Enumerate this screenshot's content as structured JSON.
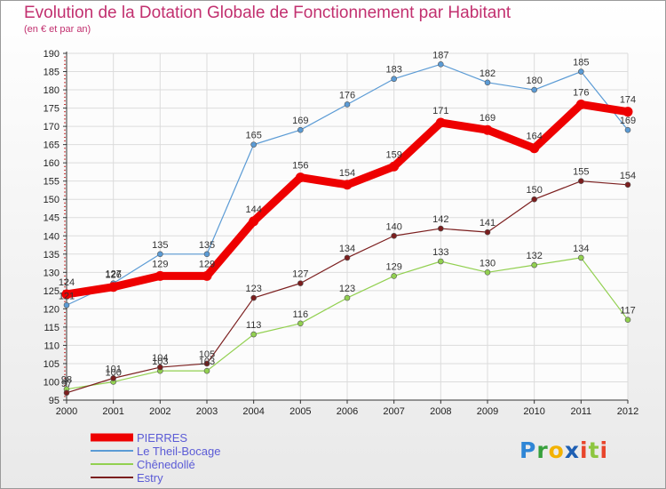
{
  "title": "Evolution de la Dotation Globale de Fonctionnement par Habitant",
  "subtitle": "(en € et par an)",
  "logo": {
    "text": "Proxiti",
    "chars": [
      "P",
      "r",
      "o",
      "x",
      "i",
      "t",
      "i"
    ]
  },
  "chart_data": {
    "type": "line",
    "title": "Evolution de la Dotation Globale de Fonctionnement par Habitant",
    "subtitle": "(en € et par an)",
    "xlabel": "",
    "ylabel": "",
    "x": [
      2000,
      2001,
      2002,
      2003,
      2004,
      2005,
      2006,
      2007,
      2008,
      2009,
      2010,
      2011,
      2012
    ],
    "ylim": [
      95,
      190
    ],
    "yticks": [
      95,
      100,
      105,
      110,
      115,
      120,
      125,
      130,
      135,
      140,
      145,
      150,
      155,
      160,
      165,
      170,
      175,
      180,
      185,
      190
    ],
    "grid": true,
    "legend_position": "bottom-left",
    "series": [
      {
        "name": "PIERRES",
        "color": "#ee0000",
        "values": [
          124,
          126,
          129,
          129,
          144,
          156,
          154,
          159,
          171,
          169,
          164,
          176,
          174
        ]
      },
      {
        "name": "Le Theil-Bocage",
        "color": "#5b9bd5",
        "values": [
          121,
          127,
          135,
          135,
          165,
          169,
          176,
          183,
          187,
          182,
          180,
          185,
          169
        ]
      },
      {
        "name": "Chênedollé",
        "color": "#92d050",
        "values": [
          98,
          100,
          103,
          103,
          113,
          116,
          123,
          129,
          133,
          130,
          132,
          134,
          117
        ]
      },
      {
        "name": "Estry",
        "color": "#7b1e1e",
        "values": [
          97,
          101,
          104,
          105,
          123,
          127,
          134,
          140,
          142,
          141,
          150,
          155,
          154
        ]
      }
    ]
  }
}
